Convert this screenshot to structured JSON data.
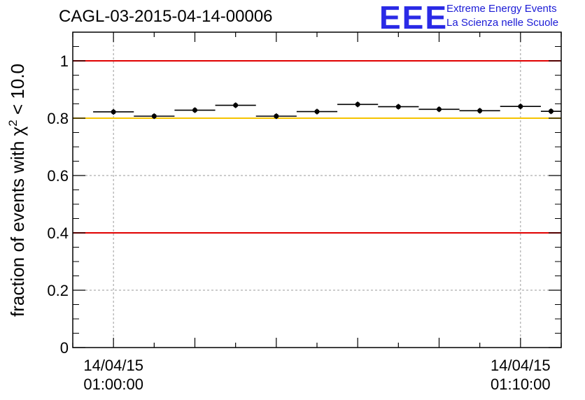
{
  "title": "CAGL-03-2015-04-14-00006",
  "logo": {
    "mark": "EEE",
    "line1": "Extreme Energy Events",
    "line2": "La Scienza nelle Scuole"
  },
  "chart_data": {
    "type": "scatter",
    "title": "CAGL-03-2015-04-14-00006",
    "ylabel_main": "fraction of events with χ",
    "ylabel_sup": "2",
    "ylabel_tail": " < 10.0",
    "ylim": [
      0,
      1.1
    ],
    "yticks": [
      0,
      0.2,
      0.4,
      0.6,
      0.8,
      1
    ],
    "ytick_labels": [
      "0",
      "0.2",
      "0.4",
      "0.6",
      "0.8",
      "1"
    ],
    "xlim_minutes": [
      -1,
      11
    ],
    "xtick_labels": [
      {
        "minute": 0,
        "date": "14/04/15",
        "time": "01:00:00"
      },
      {
        "minute": 10,
        "date": "14/04/15",
        "time": "01:10:00"
      }
    ],
    "grid": true,
    "reference_lines": [
      {
        "y": 1.0,
        "color": "#e00000"
      },
      {
        "y": 0.8,
        "color": "#f5c400"
      },
      {
        "y": 0.4,
        "color": "#e00000"
      }
    ],
    "points": [
      {
        "x_start": -0.5,
        "x_end": 0.5,
        "y": 0.822
      },
      {
        "x_start": 0.5,
        "x_end": 1.5,
        "y": 0.807
      },
      {
        "x_start": 1.5,
        "x_end": 2.5,
        "y": 0.828
      },
      {
        "x_start": 2.5,
        "x_end": 3.5,
        "y": 0.845
      },
      {
        "x_start": 3.5,
        "x_end": 4.5,
        "y": 0.807
      },
      {
        "x_start": 4.5,
        "x_end": 5.5,
        "y": 0.823
      },
      {
        "x_start": 5.5,
        "x_end": 6.5,
        "y": 0.848
      },
      {
        "x_start": 6.5,
        "x_end": 7.5,
        "y": 0.84
      },
      {
        "x_start": 7.5,
        "x_end": 8.5,
        "y": 0.831
      },
      {
        "x_start": 8.5,
        "x_end": 9.5,
        "y": 0.826
      },
      {
        "x_start": 9.5,
        "x_end": 10.5,
        "y": 0.841
      },
      {
        "x_start": 10.5,
        "x_end": 11.0,
        "y": 0.824
      }
    ]
  }
}
